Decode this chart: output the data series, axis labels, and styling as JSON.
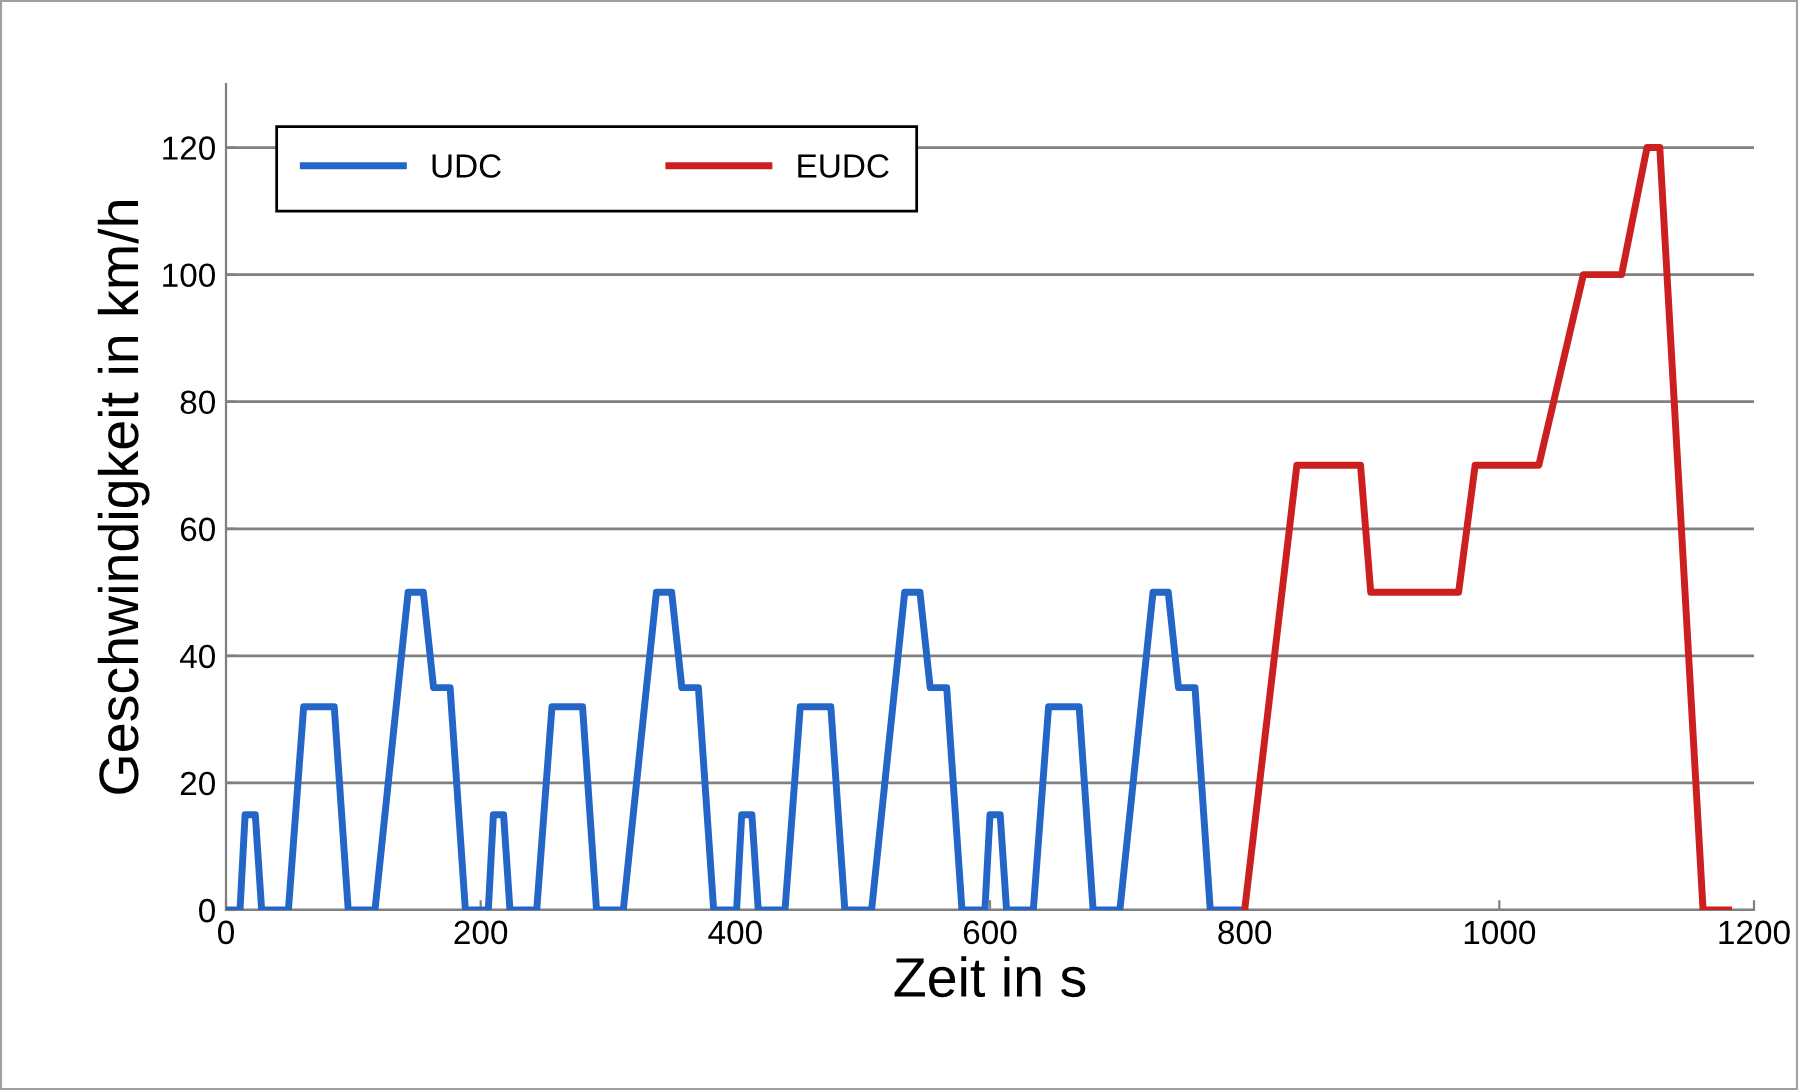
{
  "chart_data": {
    "type": "line",
    "xlabel": "Zeit in s",
    "ylabel": "Geschwindigkeit in km/h",
    "series": [
      {
        "name": "UDC",
        "color": "#2466c8",
        "x": [
          0,
          11,
          15,
          23,
          28,
          49,
          61,
          85,
          96,
          117,
          143,
          155,
          163,
          176,
          188,
          195,
          206,
          210,
          218,
          223,
          244,
          256,
          280,
          291,
          312,
          338,
          350,
          358,
          371,
          383,
          390,
          401,
          405,
          413,
          418,
          439,
          451,
          475,
          486,
          507,
          533,
          545,
          553,
          566,
          578,
          585,
          596,
          600,
          608,
          613,
          634,
          646,
          670,
          681,
          702,
          728,
          740,
          748,
          761,
          773,
          780,
          800
        ],
        "values": [
          0,
          0,
          15,
          15,
          0,
          0,
          32,
          32,
          0,
          0,
          50,
          50,
          35,
          35,
          0,
          0,
          0,
          15,
          15,
          0,
          0,
          32,
          32,
          0,
          0,
          50,
          50,
          35,
          35,
          0,
          0,
          0,
          15,
          15,
          0,
          0,
          32,
          32,
          0,
          0,
          50,
          50,
          35,
          35,
          0,
          0,
          0,
          15,
          15,
          0,
          0,
          32,
          32,
          0,
          0,
          50,
          50,
          35,
          35,
          0,
          0,
          0
        ]
      },
      {
        "name": "EUDC",
        "color": "#cc1f1f",
        "x": [
          800,
          841,
          891,
          899,
          968,
          981,
          1031,
          1066,
          1096,
          1116,
          1126,
          1160,
          1180
        ],
        "values": [
          0,
          70,
          70,
          50,
          50,
          70,
          70,
          100,
          100,
          120,
          120,
          0,
          0
        ]
      }
    ],
    "xlim": [
      0,
      1200
    ],
    "xticks": [
      0,
      200,
      400,
      600,
      800,
      1000,
      1200
    ],
    "ylim": [
      0,
      130
    ],
    "yticks": [
      0,
      20,
      40,
      60,
      80,
      100,
      120
    ],
    "grid": "y",
    "legend": "top left",
    "marker": "none",
    "line_style": "solid"
  }
}
